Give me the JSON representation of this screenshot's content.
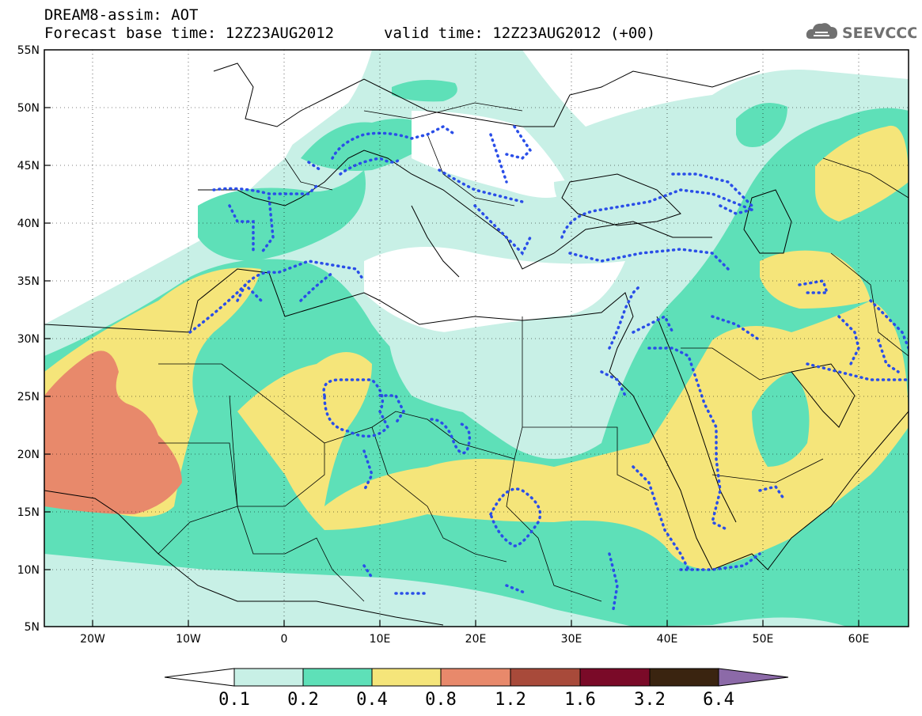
{
  "header": {
    "title": "DREAM8-assim: AOT",
    "base_time": "Forecast base time: 12Z23AUG2012",
    "valid_time": "valid time: 12Z23AUG2012 (+00)",
    "logo_text": "SEEVCCC"
  },
  "map": {
    "projection": "lat-lon",
    "lon_range": [
      -25,
      65
    ],
    "lat_range": [
      5,
      55
    ],
    "lat_labels": [
      "55N",
      "50N",
      "45N",
      "40N",
      "35N",
      "30N",
      "25N",
      "20N",
      "15N",
      "10N",
      "5N"
    ],
    "lon_labels": [
      "20W",
      "10W",
      "0",
      "10E",
      "20E",
      "30E",
      "40E",
      "50E",
      "60E"
    ],
    "grid": "dotted",
    "overlay": "dotted blue contours (assimilation)"
  },
  "colorbar": {
    "labels": [
      "0.1",
      "0.2",
      "0.4",
      "0.8",
      "1.2",
      "1.6",
      "3.2",
      "6.4"
    ],
    "colors": [
      "#ffffff",
      "#c8f0e6",
      "#5ee0b8",
      "#f5e57a",
      "#e8896b",
      "#a84a3a",
      "#7a0a28",
      "#3a2410",
      "#8c6aa8"
    ]
  }
}
